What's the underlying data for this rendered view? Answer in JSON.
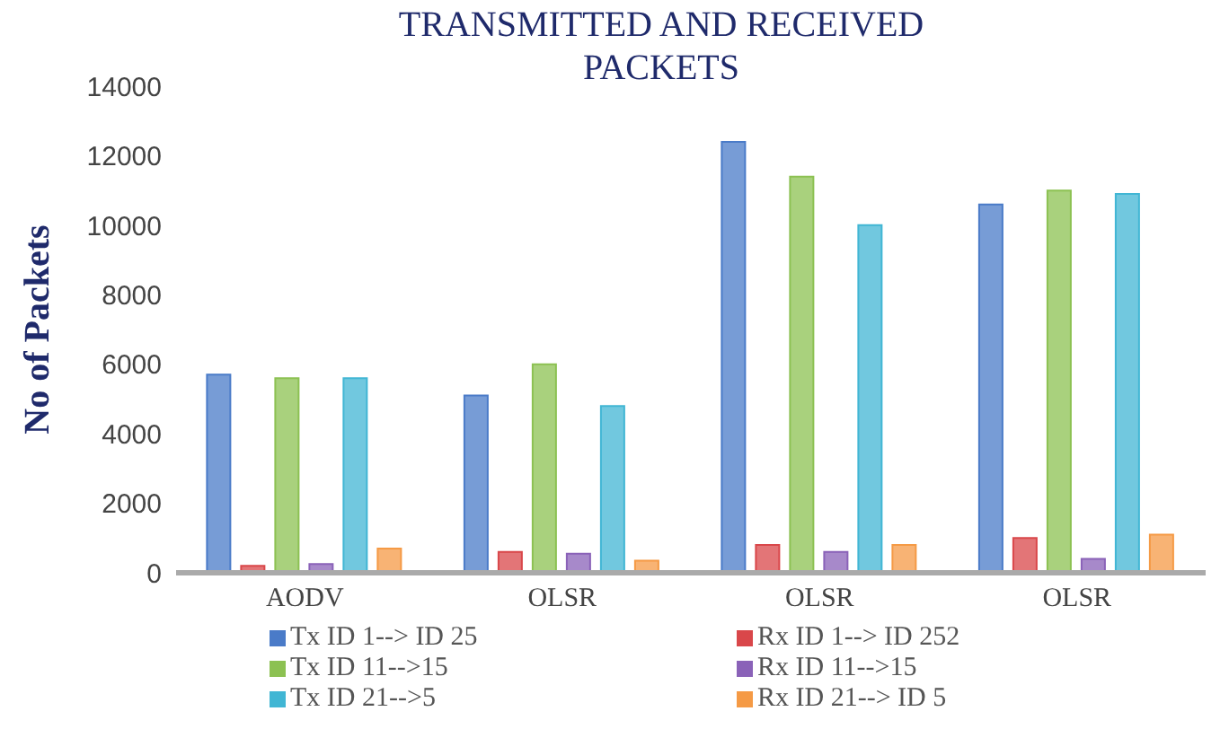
{
  "chart_data": {
    "type": "bar",
    "title": "TRANSMITTED AND RECEIVED PACKETS",
    "ylabel": "No of Packets",
    "categories": [
      "AODV",
      "OLSR",
      "OLSR",
      "OLSR"
    ],
    "series": [
      {
        "name": "Tx ID 1--> ID 25",
        "color": "#4a7bc8",
        "values": [
          5700,
          5100,
          12400,
          10600
        ]
      },
      {
        "name": "Rx ID 1--> ID 252",
        "color": "#d9474a",
        "values": [
          200,
          600,
          800,
          1000
        ]
      },
      {
        "name": "Tx ID 11-->15",
        "color": "#8cc152",
        "values": [
          5600,
          6000,
          11400,
          11000
        ]
      },
      {
        "name": "Rx ID 11-->15",
        "color": "#8a62b8",
        "values": [
          250,
          550,
          600,
          400
        ]
      },
      {
        "name": "Tx ID 21-->5",
        "color": "#41b6d4",
        "values": [
          5600,
          4800,
          10000,
          10900
        ]
      },
      {
        "name": "Rx ID 21--> ID 5",
        "color": "#f59a45",
        "values": [
          700,
          350,
          800,
          1100
        ]
      }
    ],
    "ylim": [
      0,
      14000
    ],
    "yticks": [
      0,
      2000,
      4000,
      6000,
      8000,
      10000,
      12000,
      14000
    ],
    "legend": "bottom",
    "grid": false
  }
}
